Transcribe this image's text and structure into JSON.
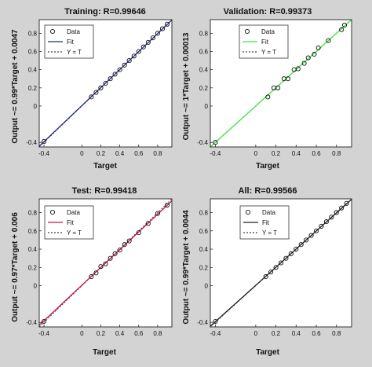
{
  "chart_data": [
    {
      "type": "scatter",
      "title": "Training: R=0.99646",
      "xlabel": "Target",
      "ylabel": "Output ~= 0.99*Target + 0.0047",
      "xlim": [
        -0.45,
        0.95
      ],
      "ylim": [
        -0.45,
        0.95
      ],
      "xticks": [
        "-0.4",
        "0",
        "0.2",
        "0.4",
        "0.6",
        "0.8"
      ],
      "xtick_values": [
        -0.4,
        0,
        0.2,
        0.4,
        0.6,
        0.8
      ],
      "yticks": [
        "-0.4",
        "0",
        "0.2",
        "0.4",
        "0.6",
        "0.8"
      ],
      "ytick_values": [
        -0.4,
        0,
        0.2,
        0.4,
        0.6,
        0.8
      ],
      "legend": [
        "Data",
        "Fit",
        "Y = T"
      ],
      "legend_position": "top-left",
      "fit": {
        "slope": 0.99,
        "intercept": 0.0047,
        "color": "#1f2a8c"
      },
      "data_color": "#111111",
      "x": [
        -0.4,
        0.1,
        0.15,
        0.2,
        0.25,
        0.3,
        0.35,
        0.4,
        0.45,
        0.5,
        0.55,
        0.6,
        0.65,
        0.7,
        0.75,
        0.8,
        0.85,
        0.9
      ],
      "y": [
        -0.39,
        0.1,
        0.15,
        0.2,
        0.25,
        0.3,
        0.35,
        0.4,
        0.45,
        0.5,
        0.55,
        0.6,
        0.65,
        0.7,
        0.75,
        0.8,
        0.85,
        0.9
      ]
    },
    {
      "type": "scatter",
      "title": "Validation: R=0.99373",
      "xlabel": "Target",
      "ylabel": "Output ~= 1*Target + 0.00013",
      "xlim": [
        -0.45,
        0.95
      ],
      "ylim": [
        -0.45,
        0.95
      ],
      "xticks": [
        "-0.4",
        "0",
        "0.2",
        "0.4",
        "0.6",
        "0.8"
      ],
      "xtick_values": [
        -0.4,
        0,
        0.2,
        0.4,
        0.6,
        0.8
      ],
      "yticks": [
        "-0.4",
        "0",
        "0.2",
        "0.4",
        "0.6",
        "0.8"
      ],
      "ytick_values": [
        -0.4,
        0,
        0.2,
        0.4,
        0.6,
        0.8
      ],
      "legend": [
        "Data",
        "Fit",
        "Y = T"
      ],
      "legend_position": "top-left",
      "fit": {
        "slope": 1.0,
        "intercept": 0.00013,
        "color": "#39e639"
      },
      "data_color": "#111111",
      "x": [
        -0.4,
        0.12,
        0.18,
        0.22,
        0.28,
        0.32,
        0.38,
        0.42,
        0.48,
        0.52,
        0.58,
        0.62,
        0.72,
        0.85,
        0.88
      ],
      "y": [
        -0.4,
        0.1,
        0.2,
        0.2,
        0.3,
        0.3,
        0.4,
        0.41,
        0.47,
        0.53,
        0.57,
        0.64,
        0.72,
        0.84,
        0.89
      ]
    },
    {
      "type": "scatter",
      "title": "Test: R=0.99418",
      "xlabel": "Target",
      "ylabel": "Output ~= 0.97*Target + 0.006",
      "xlim": [
        -0.45,
        0.95
      ],
      "ylim": [
        -0.45,
        0.95
      ],
      "xticks": [
        "-0.4",
        "0",
        "0.2",
        "0.4",
        "0.6",
        "0.8"
      ],
      "xtick_values": [
        -0.4,
        0,
        0.2,
        0.4,
        0.6,
        0.8
      ],
      "yticks": [
        "-0.4",
        "0",
        "0.2",
        "0.4",
        "0.6",
        "0.8"
      ],
      "ytick_values": [
        -0.4,
        0,
        0.2,
        0.4,
        0.6,
        0.8
      ],
      "legend": [
        "Data",
        "Fit",
        "Y = T"
      ],
      "legend_position": "top-left",
      "fit": {
        "slope": 0.97,
        "intercept": 0.006,
        "color": "#c4124f"
      },
      "data_color": "#111111",
      "x": [
        -0.4,
        0.1,
        0.15,
        0.2,
        0.25,
        0.3,
        0.35,
        0.4,
        0.45,
        0.5,
        0.6,
        0.7,
        0.8,
        0.9
      ],
      "y": [
        -0.39,
        0.1,
        0.14,
        0.21,
        0.24,
        0.3,
        0.35,
        0.39,
        0.45,
        0.49,
        0.58,
        0.68,
        0.79,
        0.88
      ]
    },
    {
      "type": "scatter",
      "title": "All: R=0.99566",
      "xlabel": "Target",
      "ylabel": "Output ~= 0.99*Target + 0.0044",
      "xlim": [
        -0.45,
        0.95
      ],
      "ylim": [
        -0.45,
        0.95
      ],
      "xticks": [
        "-0.4",
        "0",
        "0.2",
        "0.4",
        "0.6",
        "0.8"
      ],
      "xtick_values": [
        -0.4,
        0,
        0.2,
        0.4,
        0.6,
        0.8
      ],
      "yticks": [
        "-0.4",
        "0",
        "0.2",
        "0.4",
        "0.6",
        "0.8"
      ],
      "ytick_values": [
        -0.4,
        0,
        0.2,
        0.4,
        0.6,
        0.8
      ],
      "legend": [
        "Data",
        "Fit",
        "Y = T"
      ],
      "legend_position": "top-left",
      "fit": {
        "slope": 0.99,
        "intercept": 0.0044,
        "color": "#222222"
      },
      "data_color": "#111111",
      "x": [
        -0.4,
        0.1,
        0.15,
        0.2,
        0.25,
        0.3,
        0.35,
        0.4,
        0.45,
        0.5,
        0.55,
        0.6,
        0.65,
        0.7,
        0.75,
        0.8,
        0.85,
        0.9
      ],
      "y": [
        -0.39,
        0.1,
        0.15,
        0.2,
        0.25,
        0.3,
        0.35,
        0.4,
        0.45,
        0.5,
        0.55,
        0.6,
        0.65,
        0.7,
        0.75,
        0.8,
        0.85,
        0.9
      ]
    }
  ]
}
